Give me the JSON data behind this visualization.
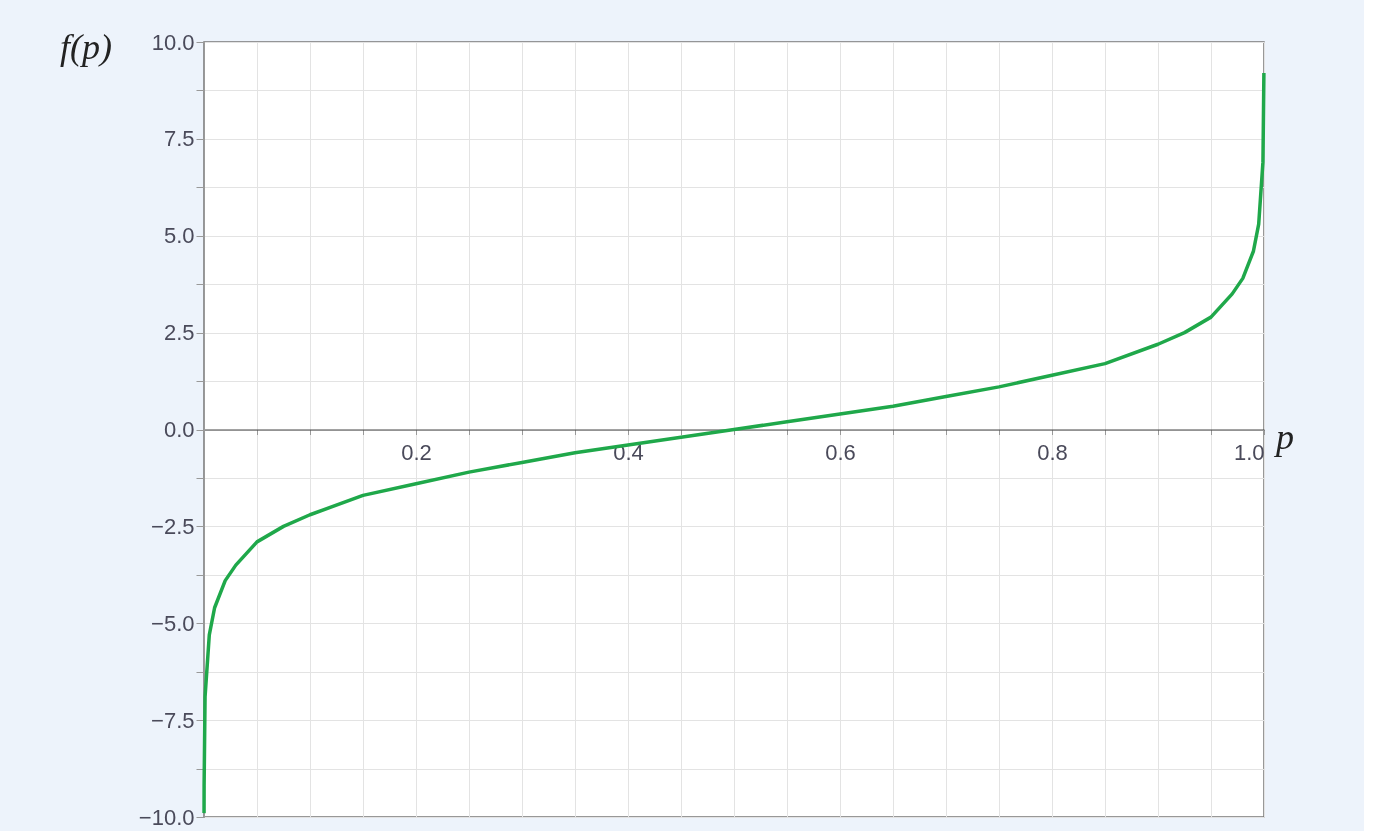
{
  "chart_data": {
    "type": "line",
    "xlabel": "p",
    "ylabel": "f(p)",
    "x": [
      5e-05,
      0.0001,
      0.001,
      0.005,
      0.01,
      0.02,
      0.03,
      0.05,
      0.075,
      0.1,
      0.15,
      0.2,
      0.25,
      0.3,
      0.35,
      0.4,
      0.45,
      0.5,
      0.55,
      0.6,
      0.65,
      0.7,
      0.75,
      0.8,
      0.85,
      0.9,
      0.925,
      0.95,
      0.97,
      0.98,
      0.99,
      0.995,
      0.999,
      0.9999
    ],
    "series": [
      {
        "color": "#1fa84a",
        "values": [
          -9.9,
          -9.2,
          -6.9,
          -5.3,
          -4.6,
          -3.9,
          -3.5,
          -2.9,
          -2.5,
          -2.2,
          -1.7,
          -1.4,
          -1.1,
          -0.85,
          -0.6,
          -0.4,
          -0.2,
          0.0,
          0.2,
          0.4,
          0.6,
          0.85,
          1.1,
          1.4,
          1.7,
          2.2,
          2.5,
          2.9,
          3.5,
          3.9,
          4.6,
          5.3,
          6.9,
          9.2
        ]
      }
    ],
    "xlim": [
      0,
      1
    ],
    "ylim": [
      -10,
      10
    ],
    "xticks": [
      {
        "value": 0.05,
        "label": null
      },
      {
        "value": 0.1,
        "label": null
      },
      {
        "value": 0.15,
        "label": null
      },
      0.2,
      {
        "value": 0.25,
        "label": null
      },
      {
        "value": 0.3,
        "label": null
      },
      {
        "value": 0.35,
        "label": null
      },
      0.4,
      {
        "value": 0.45,
        "label": null
      },
      {
        "value": 0.5,
        "label": null
      },
      {
        "value": 0.55,
        "label": null
      },
      0.6,
      {
        "value": 0.65,
        "label": null
      },
      {
        "value": 0.7,
        "label": null
      },
      {
        "value": 0.75,
        "label": null
      },
      0.8,
      {
        "value": 0.85,
        "label": null
      },
      {
        "value": 0.9,
        "label": null
      },
      {
        "value": 0.95,
        "label": null
      },
      {
        "value": 1.0,
        "label": "1.0"
      }
    ],
    "yticks": [
      {
        "value": -10,
        "label": "−10.0"
      },
      {
        "value": -8.75,
        "label": null
      },
      {
        "value": -7.5,
        "label": "−7.5"
      },
      {
        "value": -6.25,
        "label": null
      },
      {
        "value": -5,
        "label": "−5.0"
      },
      {
        "value": -3.75,
        "label": null
      },
      {
        "value": -2.5,
        "label": "−2.5"
      },
      {
        "value": -1.25,
        "label": null
      },
      {
        "value": 0,
        "label": "0.0"
      },
      {
        "value": 1.25,
        "label": null
      },
      {
        "value": 2.5,
        "label": "2.5"
      },
      {
        "value": 3.75,
        "label": null
      },
      {
        "value": 5,
        "label": "5.0"
      },
      {
        "value": 6.25,
        "label": null
      },
      {
        "value": 7.5,
        "label": "7.5"
      },
      {
        "value": 8.75,
        "label": null
      },
      {
        "value": 10,
        "label": "10.0"
      }
    ],
    "grid": true,
    "marker": "none",
    "line_style": "solid"
  }
}
